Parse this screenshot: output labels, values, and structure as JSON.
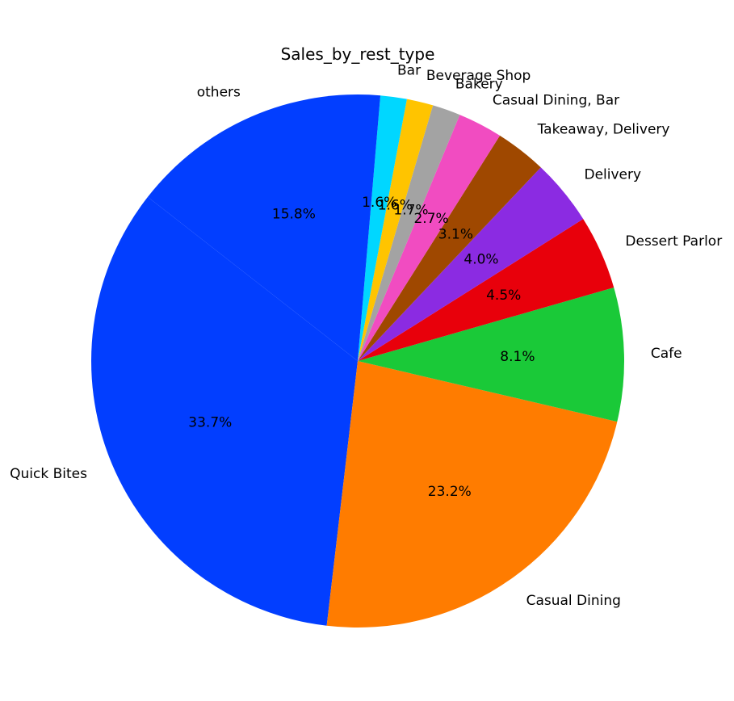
{
  "chart_data": {
    "type": "pie",
    "title": "Sales_by_rest_type",
    "slices": [
      {
        "label": "Quick Bites",
        "value": 33.7,
        "pct_label": "33.7%",
        "color": "#023eff"
      },
      {
        "label": "Casual Dining",
        "value": 23.2,
        "pct_label": "23.2%",
        "color": "#ff7c00"
      },
      {
        "label": "Cafe",
        "value": 8.1,
        "pct_label": "8.1%",
        "color": "#1ac938"
      },
      {
        "label": "Dessert Parlor",
        "value": 4.5,
        "pct_label": "4.5%",
        "color": "#e8000b"
      },
      {
        "label": "Delivery",
        "value": 4.0,
        "pct_label": "4.0%",
        "color": "#8b2be2"
      },
      {
        "label": "Takeaway, Delivery",
        "value": 3.1,
        "pct_label": "3.1%",
        "color": "#9f4800"
      },
      {
        "label": "Casual Dining, Bar",
        "value": 2.7,
        "pct_label": "2.7%",
        "color": "#f14cc1"
      },
      {
        "label": "Bakery",
        "value": 1.7,
        "pct_label": "1.7%",
        "color": "#a3a3a3"
      },
      {
        "label": "Beverage Shop",
        "value": 1.6,
        "pct_label": "1.6%",
        "color": "#ffc400"
      },
      {
        "label": "Bar",
        "value": 1.6,
        "pct_label": "1.6%",
        "color": "#00d7ff"
      },
      {
        "label": "others",
        "value": 15.8,
        "pct_label": "15.8%",
        "color": "#023eff"
      }
    ],
    "start_angle_deg": 142,
    "direction": "counterclockwise"
  }
}
